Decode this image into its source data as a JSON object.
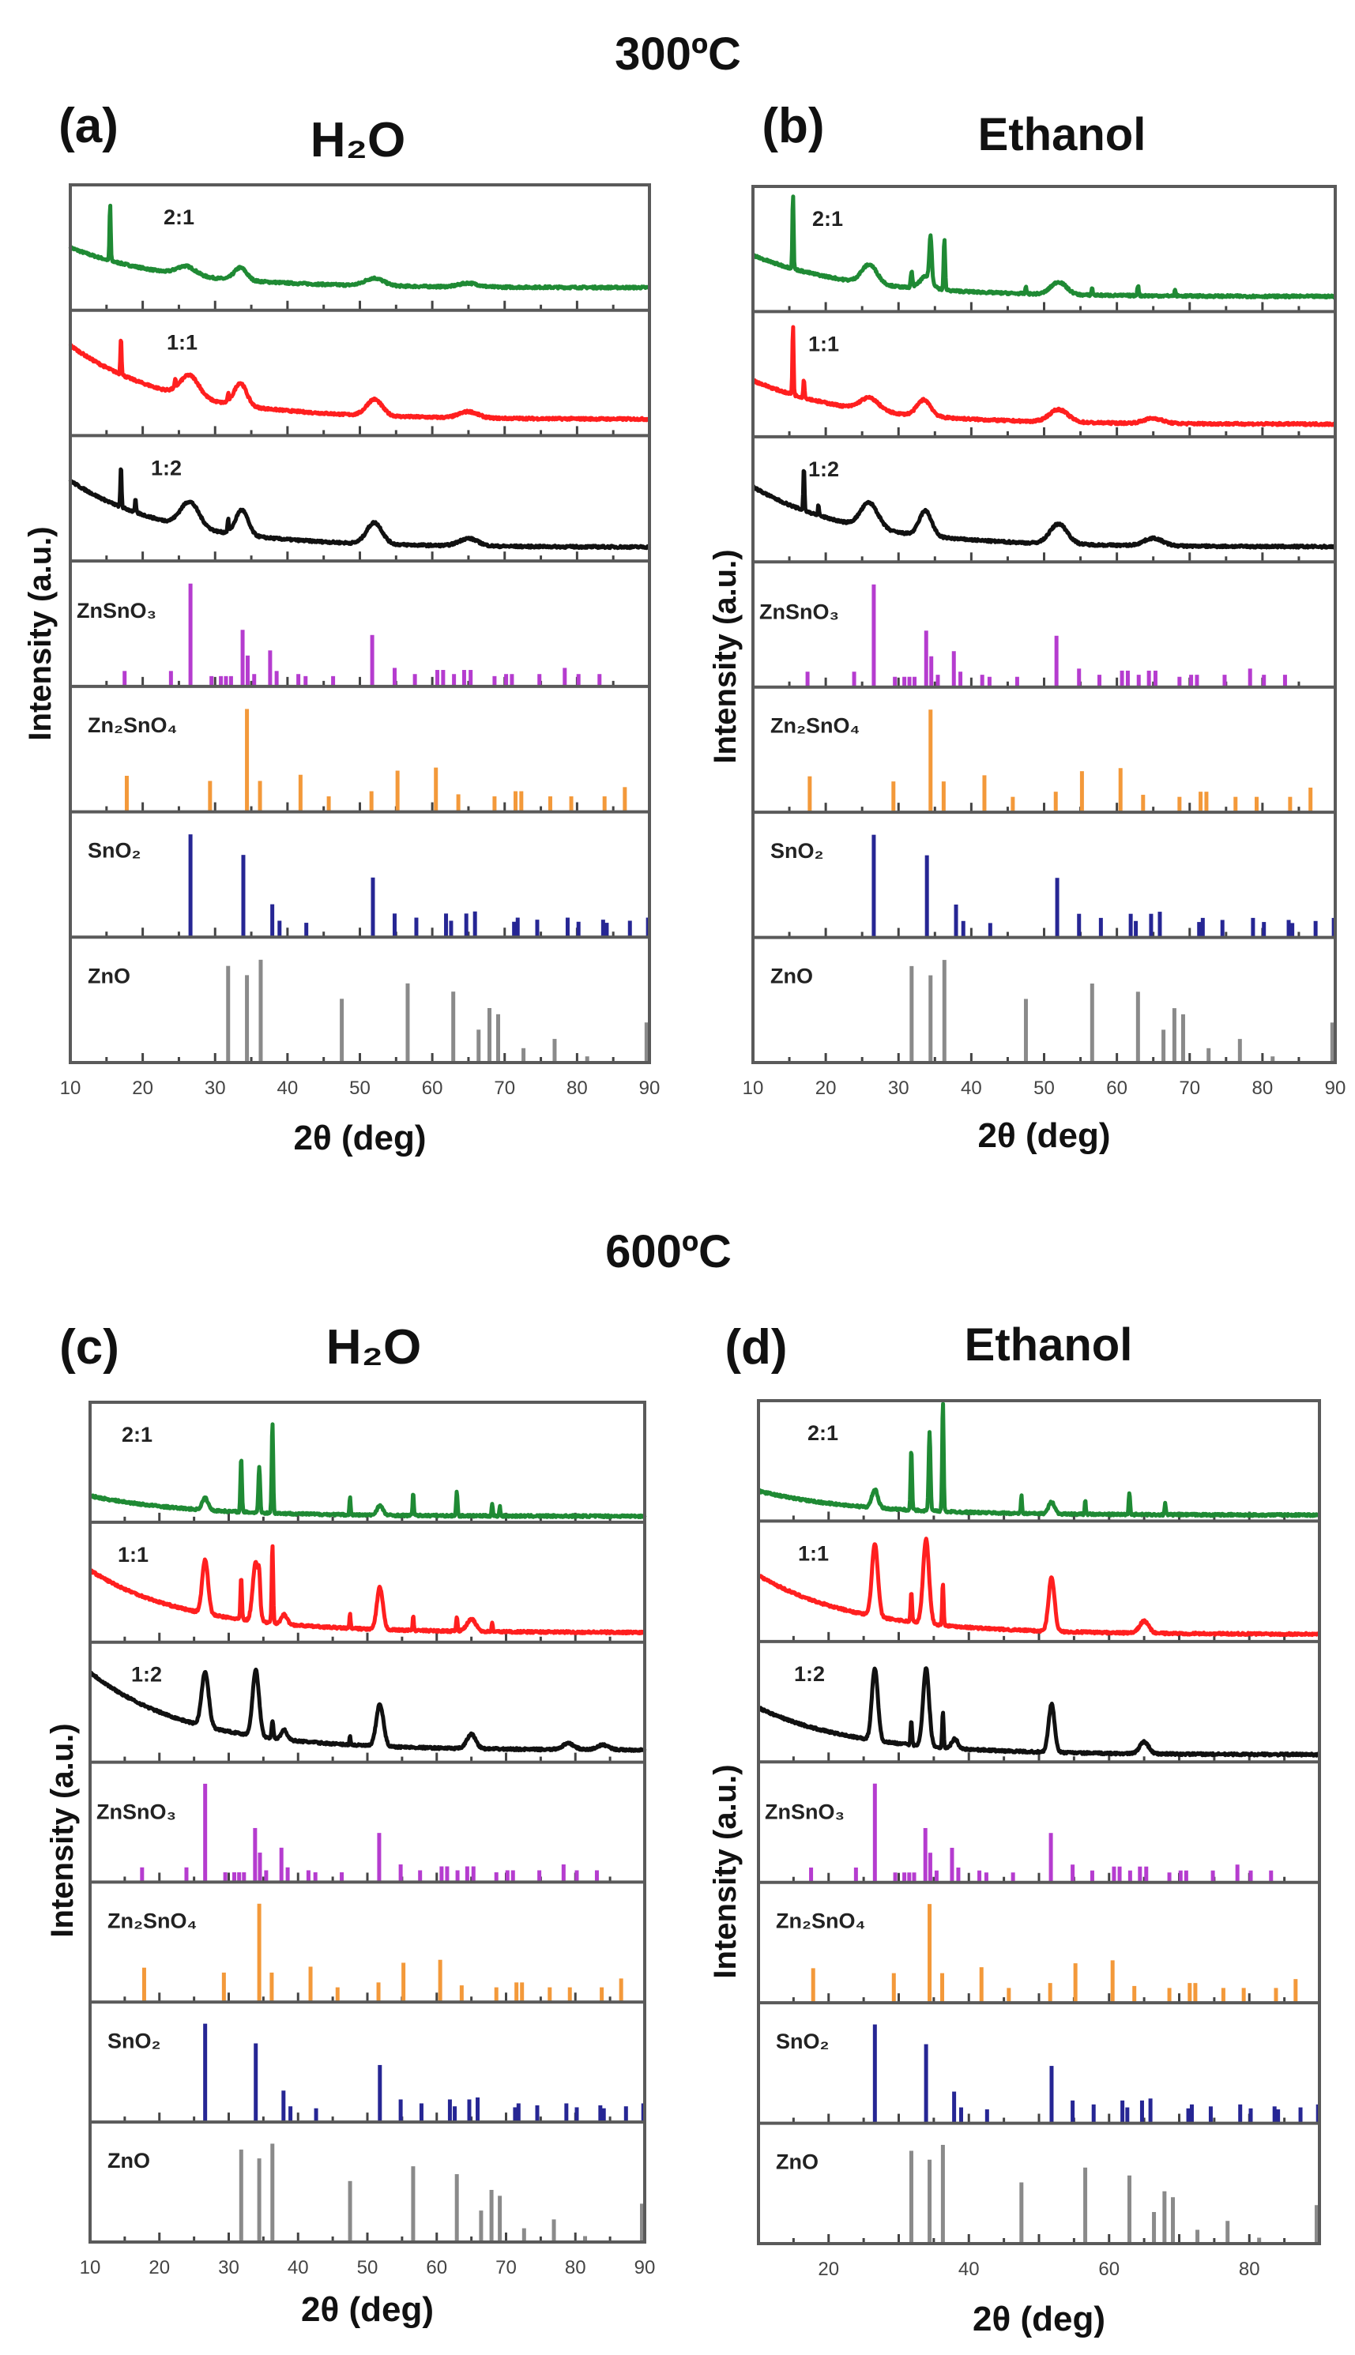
{
  "titles": {
    "top": "300ºC",
    "bottom": "600ºC",
    "panel_a": "(a)",
    "panel_a_solvent": "H₂O",
    "panel_b": "(b)",
    "panel_b_solvent": "Ethanol",
    "panel_c": "(c)",
    "panel_c_solvent": "H₂O",
    "panel_d": "(d)",
    "panel_d_solvent": "Ethanol"
  },
  "colors": {
    "2:1": "#1f8a34",
    "1:1": "#ff1f1f",
    "1:2": "#111111",
    "ZnSnO3": "#b53ccf",
    "Zn2SnO4": "#f3993a",
    "SnO2": "#262694",
    "ZnO": "#8a8a8a",
    "frame": "#5a5a5a"
  },
  "reference_patterns": [
    {
      "key": "ZnSnO3",
      "label": "ZnSnO₃",
      "peaks": [
        [
          17.5,
          15
        ],
        [
          23.9,
          15
        ],
        [
          26.6,
          100
        ],
        [
          29.5,
          10
        ],
        [
          30.8,
          10
        ],
        [
          31.5,
          10
        ],
        [
          32.2,
          10
        ],
        [
          33.8,
          55
        ],
        [
          34.5,
          30
        ],
        [
          35.4,
          12
        ],
        [
          37.6,
          35
        ],
        [
          38.5,
          15
        ],
        [
          41.5,
          12
        ],
        [
          42.5,
          10
        ],
        [
          46.3,
          10
        ],
        [
          51.7,
          50
        ],
        [
          54.8,
          18
        ],
        [
          57.6,
          12
        ],
        [
          60.7,
          16
        ],
        [
          61.5,
          16
        ],
        [
          63.0,
          12
        ],
        [
          64.4,
          16
        ],
        [
          65.3,
          16
        ],
        [
          68.6,
          10
        ],
        [
          70.2,
          12
        ],
        [
          71.0,
          12
        ],
        [
          74.8,
          12
        ],
        [
          78.3,
          18
        ],
        [
          80.2,
          12
        ],
        [
          83.1,
          12
        ]
      ]
    },
    {
      "key": "Zn2SnO4",
      "label": "Zn₂SnO₄",
      "peaks": [
        [
          17.8,
          35
        ],
        [
          29.3,
          30
        ],
        [
          34.4,
          100
        ],
        [
          36.2,
          30
        ],
        [
          41.8,
          36
        ],
        [
          45.7,
          15
        ],
        [
          51.6,
          20
        ],
        [
          55.2,
          40
        ],
        [
          60.5,
          43
        ],
        [
          63.6,
          17
        ],
        [
          68.6,
          15
        ],
        [
          71.5,
          20
        ],
        [
          72.3,
          20
        ],
        [
          76.3,
          15
        ],
        [
          79.2,
          15
        ],
        [
          83.8,
          15
        ],
        [
          86.6,
          24
        ]
      ]
    },
    {
      "key": "SnO2",
      "label": "SnO₂",
      "peaks": [
        [
          26.6,
          100
        ],
        [
          33.9,
          80
        ],
        [
          37.9,
          32
        ],
        [
          38.9,
          16
        ],
        [
          42.6,
          14
        ],
        [
          51.8,
          58
        ],
        [
          54.8,
          23
        ],
        [
          57.8,
          19
        ],
        [
          61.9,
          23
        ],
        [
          62.6,
          16
        ],
        [
          64.7,
          23
        ],
        [
          65.9,
          25
        ],
        [
          71.3,
          15
        ],
        [
          71.8,
          19
        ],
        [
          74.5,
          17
        ],
        [
          78.7,
          19
        ],
        [
          80.2,
          15
        ],
        [
          83.6,
          17
        ],
        [
          84.1,
          14
        ],
        [
          87.3,
          16
        ],
        [
          89.8,
          19
        ]
      ]
    },
    {
      "key": "ZnO",
      "label": "ZnO",
      "peaks": [
        [
          31.8,
          94
        ],
        [
          34.4,
          85
        ],
        [
          36.3,
          100
        ],
        [
          47.5,
          62
        ],
        [
          56.6,
          77
        ],
        [
          62.9,
          69
        ],
        [
          66.4,
          32
        ],
        [
          67.9,
          53
        ],
        [
          69.1,
          47
        ],
        [
          72.6,
          14
        ],
        [
          76.9,
          23
        ],
        [
          81.4,
          6
        ],
        [
          89.6,
          39
        ]
      ]
    }
  ],
  "chart_data": [
    {
      "type": "line",
      "panel": "(a)",
      "temperature": "300ºC",
      "title": "H₂O",
      "xlabel": "2θ (deg)",
      "ylabel": "Intensity (a.u.)",
      "xlim": [
        10,
        90
      ],
      "xticks": [
        10,
        20,
        30,
        40,
        50,
        60,
        70,
        80,
        90
      ],
      "grid": false,
      "samples": [
        {
          "key": "2:1",
          "label": "2:1",
          "background": [
            0.5,
            0.18
          ],
          "peaks": [
            [
              15.5,
              0.45,
              0.2
            ],
            [
              26,
              0.07,
              3
            ],
            [
              33.5,
              0.1,
              2
            ],
            [
              52,
              0.06,
              3
            ],
            [
              65,
              0.03,
              3
            ]
          ]
        },
        {
          "key": "1:1",
          "label": "1:1",
          "background": [
            0.72,
            0.13
          ],
          "peaks": [
            [
              17,
              0.3,
              0.2
            ],
            [
              24.5,
              0.06,
              0.2
            ],
            [
              26.5,
              0.17,
              3
            ],
            [
              31.8,
              0.06,
              0.2
            ],
            [
              33.5,
              0.18,
              2
            ],
            [
              52,
              0.13,
              2.5
            ],
            [
              65,
              0.05,
              3
            ]
          ]
        },
        {
          "key": "1:2",
          "label": "1:2",
          "background": [
            0.64,
            0.11
          ],
          "peaks": [
            [
              17,
              0.33,
              0.2
            ],
            [
              19,
              0.1,
              0.2
            ],
            [
              26.5,
              0.2,
              3
            ],
            [
              31.8,
              0.1,
              0.2
            ],
            [
              33.7,
              0.2,
              2
            ],
            [
              52,
              0.17,
              2.5
            ],
            [
              65,
              0.06,
              3
            ]
          ]
        }
      ],
      "references": [
        "ZnSnO3",
        "Zn2SnO4",
        "SnO2",
        "ZnO"
      ]
    },
    {
      "type": "line",
      "panel": "(b)",
      "temperature": "300ºC",
      "title": "Ethanol",
      "xlabel": "2θ (deg)",
      "ylabel": "Intensity (a.u.)",
      "xlim": [
        10,
        90
      ],
      "xticks": [
        10,
        20,
        30,
        40,
        50,
        60,
        70,
        80,
        90
      ],
      "grid": false,
      "samples": [
        {
          "key": "2:1",
          "label": "2:1",
          "background": [
            0.45,
            0.12
          ],
          "peaks": [
            [
              15.5,
              0.6,
              0.2
            ],
            [
              26,
              0.15,
              2.5
            ],
            [
              31.8,
              0.12,
              0.3
            ],
            [
              33.8,
              0.1,
              2
            ],
            [
              34.4,
              0.35,
              0.4
            ],
            [
              36.3,
              0.4,
              0.25
            ],
            [
              47.5,
              0.06,
              0.2
            ],
            [
              52,
              0.1,
              2.5
            ],
            [
              56.6,
              0.06,
              0.2
            ],
            [
              62.9,
              0.08,
              0.25
            ],
            [
              68,
              0.05,
              0.2
            ]
          ]
        },
        {
          "key": "1:1",
          "label": "1:1",
          "background": [
            0.45,
            0.1
          ],
          "peaks": [
            [
              15.5,
              0.55,
              0.2
            ],
            [
              17,
              0.15,
              0.2
            ],
            [
              26,
              0.1,
              3
            ],
            [
              33.5,
              0.13,
              2.2
            ],
            [
              52,
              0.1,
              3
            ],
            [
              65,
              0.04,
              3
            ]
          ]
        },
        {
          "key": "1:2",
          "label": "1:2",
          "background": [
            0.6,
            0.12
          ],
          "peaks": [
            [
              17,
              0.35,
              0.2
            ],
            [
              19,
              0.08,
              0.2
            ],
            [
              26,
              0.2,
              2.8
            ],
            [
              33.7,
              0.2,
              2
            ],
            [
              52,
              0.16,
              2.8
            ],
            [
              65,
              0.06,
              3
            ]
          ]
        }
      ],
      "references": [
        "ZnSnO3",
        "Zn2SnO4",
        "SnO2",
        "ZnO"
      ]
    },
    {
      "type": "line",
      "panel": "(c)",
      "temperature": "600ºC",
      "title": "H₂O",
      "xlabel": "2θ (deg)",
      "ylabel": "Intensity (a.u.)",
      "xlim": [
        10,
        90
      ],
      "xticks": [
        10,
        20,
        30,
        40,
        50,
        60,
        70,
        80,
        90
      ],
      "grid": false,
      "samples": [
        {
          "key": "2:1",
          "label": "2:1",
          "background": [
            0.22,
            0.05
          ],
          "peaks": [
            [
              26.6,
              0.1,
              1
            ],
            [
              31.8,
              0.45,
              0.25
            ],
            [
              34.4,
              0.38,
              0.3
            ],
            [
              36.3,
              0.75,
              0.25
            ],
            [
              47.5,
              0.15,
              0.2
            ],
            [
              51.8,
              0.08,
              1
            ],
            [
              56.6,
              0.2,
              0.2
            ],
            [
              62.9,
              0.2,
              0.25
            ],
            [
              68,
              0.1,
              0.2
            ],
            [
              69.1,
              0.08,
              0.2
            ]
          ]
        },
        {
          "key": "1:1",
          "label": "1:1",
          "background": [
            0.6,
            0.08
          ],
          "peaks": [
            [
              26.6,
              0.45,
              1
            ],
            [
              31.8,
              0.35,
              0.25
            ],
            [
              33.9,
              0.5,
              1
            ],
            [
              34.4,
              0.2,
              0.3
            ],
            [
              36.3,
              0.65,
              0.25
            ],
            [
              38,
              0.08,
              1
            ],
            [
              47.5,
              0.12,
              0.2
            ],
            [
              51.8,
              0.35,
              1
            ],
            [
              56.6,
              0.12,
              0.2
            ],
            [
              62.9,
              0.12,
              0.25
            ],
            [
              65,
              0.1,
              1.5
            ],
            [
              68,
              0.07,
              0.2
            ]
          ]
        },
        {
          "key": "1:2",
          "label": "1:2",
          "background": [
            0.75,
            0.1
          ],
          "peaks": [
            [
              26.6,
              0.45,
              1.2
            ],
            [
              33.9,
              0.55,
              1.1
            ],
            [
              36.3,
              0.15,
              0.3
            ],
            [
              38,
              0.08,
              1
            ],
            [
              47.5,
              0.08,
              0.2
            ],
            [
              51.8,
              0.35,
              1.2
            ],
            [
              65,
              0.12,
              1.5
            ],
            [
              79,
              0.05,
              2
            ],
            [
              84,
              0.04,
              2
            ]
          ]
        }
      ],
      "references": [
        "ZnSnO3",
        "Zn2SnO4",
        "SnO2",
        "ZnO"
      ]
    },
    {
      "type": "line",
      "panel": "(d)",
      "temperature": "600ºC",
      "title": "Ethanol",
      "xlabel": "2θ (deg)",
      "ylabel": "Intensity (a.u.)",
      "xlim": [
        10,
        90
      ],
      "xticks": [
        20,
        40,
        60,
        80
      ],
      "grid": false,
      "samples": [
        {
          "key": "2:1",
          "label": "2:1",
          "background": [
            0.25,
            0.05
          ],
          "peaks": [
            [
              26.6,
              0.15,
              1
            ],
            [
              31.8,
              0.5,
              0.25
            ],
            [
              34.4,
              0.65,
              0.3
            ],
            [
              36.3,
              0.9,
              0.25
            ],
            [
              47.5,
              0.15,
              0.2
            ],
            [
              51.8,
              0.1,
              1
            ],
            [
              56.6,
              0.12,
              0.2
            ],
            [
              62.9,
              0.18,
              0.25
            ],
            [
              68,
              0.1,
              0.2
            ]
          ]
        },
        {
          "key": "1:1",
          "label": "1:1",
          "background": [
            0.55,
            0.06
          ],
          "peaks": [
            [
              26.6,
              0.6,
              1
            ],
            [
              31.8,
              0.25,
              0.25
            ],
            [
              33.9,
              0.7,
              1
            ],
            [
              36.3,
              0.35,
              0.25
            ],
            [
              51.8,
              0.45,
              1
            ],
            [
              65,
              0.1,
              1.5
            ]
          ]
        },
        {
          "key": "1:2",
          "label": "1:2",
          "background": [
            0.45,
            0.06
          ],
          "peaks": [
            [
              26.6,
              0.6,
              1
            ],
            [
              31.8,
              0.2,
              0.25
            ],
            [
              33.9,
              0.65,
              1
            ],
            [
              36.3,
              0.3,
              0.25
            ],
            [
              38,
              0.08,
              1
            ],
            [
              51.8,
              0.4,
              1
            ],
            [
              65,
              0.1,
              1.5
            ]
          ]
        }
      ],
      "references": [
        "ZnSnO3",
        "Zn2SnO4",
        "SnO2",
        "ZnO"
      ]
    }
  ]
}
